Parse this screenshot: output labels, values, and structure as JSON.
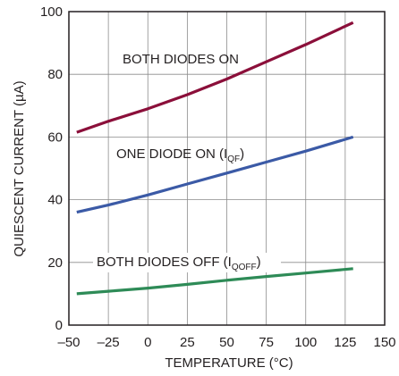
{
  "chart_data": {
    "type": "line",
    "xlabel": "TEMPERATURE (°C)",
    "ylabel": "QUIESCENT CURRENT (µA)",
    "xlim": [
      -50,
      150
    ],
    "ylim": [
      0,
      100
    ],
    "x_ticks": [
      -50,
      -25,
      0,
      25,
      50,
      75,
      100,
      125,
      150
    ],
    "x_tick_labels": [
      "–50",
      "–25",
      "0",
      "25",
      "50",
      "75",
      "100",
      "125",
      "150"
    ],
    "y_ticks": [
      0,
      20,
      40,
      60,
      80,
      100
    ],
    "y_tick_labels": [
      "0",
      "20",
      "40",
      "60",
      "80",
      "100"
    ],
    "grid": true,
    "legend": "none",
    "series": [
      {
        "color": "#8b0f3a",
        "x": [
          -45,
          -25,
          0,
          25,
          50,
          75,
          100,
          130
        ],
        "y": [
          61.5,
          65,
          69,
          73.5,
          78.5,
          84,
          89.5,
          96.5
        ]
      },
      {
        "color": "#3b5aa6",
        "x": [
          -45,
          -25,
          0,
          25,
          50,
          75,
          100,
          130
        ],
        "y": [
          36,
          38.3,
          41.5,
          45,
          48.5,
          52,
          55.5,
          60
        ]
      },
      {
        "color": "#2e8b57",
        "x": [
          -45,
          -25,
          0,
          25,
          50,
          75,
          100,
          130
        ],
        "y": [
          10,
          10.8,
          11.8,
          13,
          14.3,
          15.5,
          16.6,
          18
        ]
      }
    ],
    "annotations": [
      {
        "main": "BOTH DIODES ON",
        "sub": "",
        "tail": ""
      },
      {
        "main": "ONE DIODE ON (I",
        "sub": "QF",
        "tail": ")"
      },
      {
        "main": "BOTH DIODES OFF (I",
        "sub": "QOFF",
        "tail": ")"
      }
    ]
  }
}
